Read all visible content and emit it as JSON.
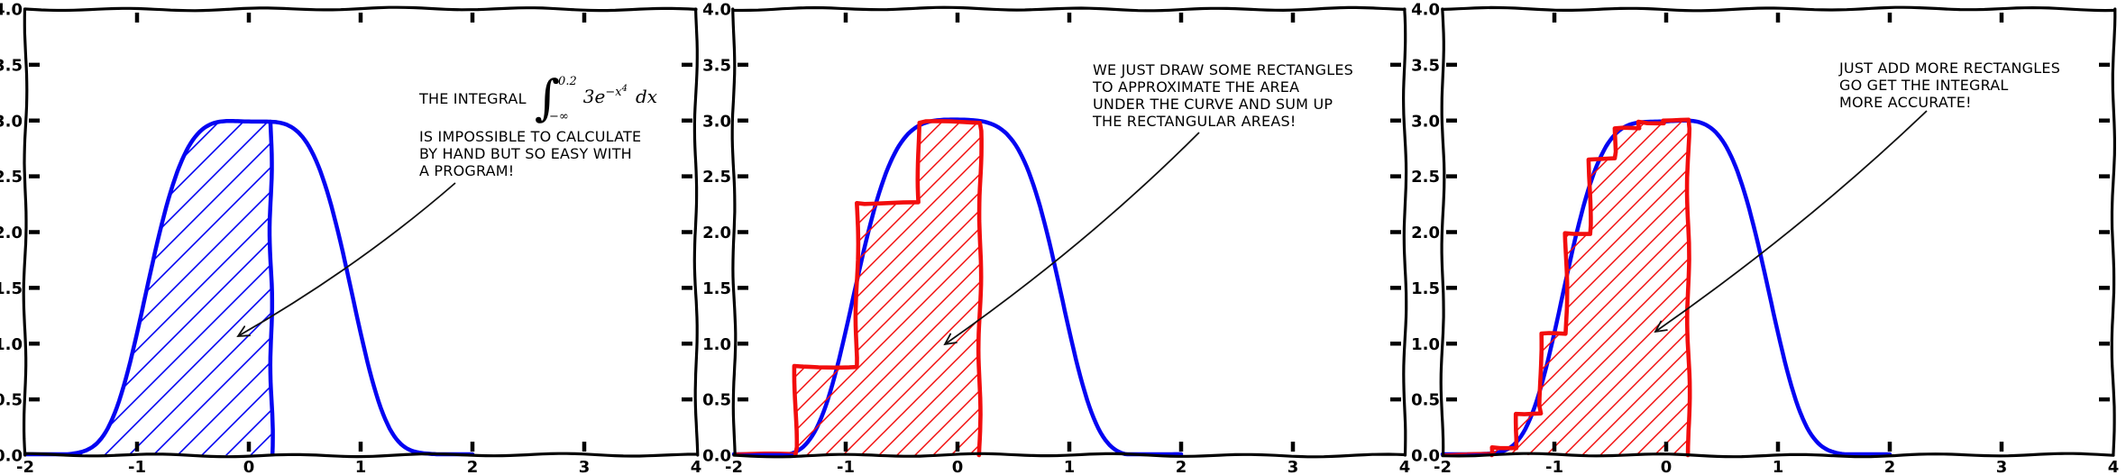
{
  "style": {
    "background": "#ffffff",
    "curve_blue": "#0404f2",
    "rect_red": "#f20d0d",
    "axis_black": "#000000",
    "annotation_black": "#111111"
  },
  "axes": {
    "xlim": [
      -2,
      4
    ],
    "ylim": [
      0,
      4
    ],
    "xticks": [
      -2,
      -1,
      0,
      1,
      2,
      3,
      4
    ],
    "xtick_labels": [
      "-2",
      "-1",
      "0",
      "1",
      "2",
      "3",
      "4"
    ],
    "yticks": [
      0,
      0.5,
      1,
      1.5,
      2,
      2.5,
      3,
      3.5,
      4
    ],
    "ytick_labels": [
      "0.0",
      "0.5",
      "1.0",
      "1.5",
      "2.0",
      "2.5",
      "3.0",
      "3.5",
      "4.0"
    ],
    "inner_xticks": [
      -1,
      0,
      1,
      2,
      3
    ],
    "inner_yticks": [
      0.5,
      1,
      1.5,
      2,
      2.5,
      3,
      3.5
    ],
    "grid": false
  },
  "panels": [
    {
      "annotation": {
        "formula": {
          "pre": "THE INTEGRAL",
          "integral_sign": "∫",
          "upper_limit": "0.2",
          "lower_limit": "−∞",
          "integrand": "3e",
          "exponent_base": "−x",
          "exponent_power": "4",
          "differential": "dx"
        },
        "lines": [
          "IS IMPOSSIBLE TO CALCULATE",
          "BY HAND BUT SO EASY WITH",
          "A PROGRAM!"
        ]
      }
    },
    {
      "annotation": {
        "lines": [
          "WE JUST DRAW SOME RECTANGLES",
          "TO APPROXIMATE THE AREA",
          "UNDER THE CURVE AND SUM UP",
          "THE RECTANGULAR AREAS!"
        ]
      }
    },
    {
      "annotation": {
        "lines": [
          "JUST ADD MORE RECTANGLES",
          "GO GET THE INTEGRAL",
          "MORE ACCURATE!"
        ]
      }
    }
  ],
  "chart_data": [
    {
      "type": "area",
      "panel": 1,
      "description": "Exact area under the curve, hatched in blue from x=-2 to x=0.2",
      "function": "y = 3*exp(-x^4)",
      "curve_color": "#0404f2",
      "xlim": [
        -2,
        4
      ],
      "ylim": [
        0,
        4
      ],
      "xticks": [
        -2,
        -1,
        0,
        1,
        2,
        3,
        4
      ],
      "yticks": [
        0,
        0.5,
        1,
        1.5,
        2,
        2.5,
        3,
        3.5,
        4
      ],
      "legend": "none",
      "grid": false,
      "fill": {
        "kind": "area-under-curve",
        "x_from": -2,
        "x_to": 0.2,
        "hatch": "/",
        "color": "#0404f2",
        "height_at_right_edge": 2.99
      }
    },
    {
      "type": "line+bar",
      "panel": 2,
      "description": "Coarse rectangle (trapezoid-height) approximation with 4 slabs on [-2, 0.2]",
      "function": "y = 3*exp(-x^4)",
      "curve_color": "#0404f2",
      "bar_color": "#f20d0d",
      "hatch": "/",
      "xlim": [
        -2,
        4
      ],
      "ylim": [
        0,
        4
      ],
      "rectangles": [
        {
          "x0": -2.0,
          "x1": -1.45,
          "height": 0.02
        },
        {
          "x0": -1.45,
          "x1": -0.9,
          "height": 0.8
        },
        {
          "x0": -0.9,
          "x1": -0.35,
          "height": 2.26
        },
        {
          "x0": -0.35,
          "x1": 0.2,
          "height": 2.98
        }
      ]
    },
    {
      "type": "line+bar",
      "panel": 3,
      "description": "Finer rectangle approximation with 10 slabs on [-2, 0.2]",
      "function": "y = 3*exp(-x^4)",
      "curve_color": "#0404f2",
      "bar_color": "#f20d0d",
      "hatch": "/",
      "xlim": [
        -2,
        4
      ],
      "ylim": [
        0,
        4
      ],
      "rectangles": [
        {
          "x0": -2.0,
          "x1": -1.78,
          "height": 0.0
        },
        {
          "x0": -1.78,
          "x1": -1.56,
          "height": 0.01
        },
        {
          "x0": -1.56,
          "x1": -1.34,
          "height": 0.07
        },
        {
          "x0": -1.34,
          "x1": -1.12,
          "height": 0.37
        },
        {
          "x0": -1.12,
          "x1": -0.9,
          "height": 1.09
        },
        {
          "x0": -0.9,
          "x1": -0.68,
          "height": 1.99
        },
        {
          "x0": -0.68,
          "x1": -0.46,
          "height": 2.65
        },
        {
          "x0": -0.46,
          "x1": -0.24,
          "height": 2.93
        },
        {
          "x0": -0.24,
          "x1": -0.02,
          "height": 2.99
        },
        {
          "x0": -0.02,
          "x1": 0.2,
          "height": 3.0
        }
      ]
    }
  ]
}
